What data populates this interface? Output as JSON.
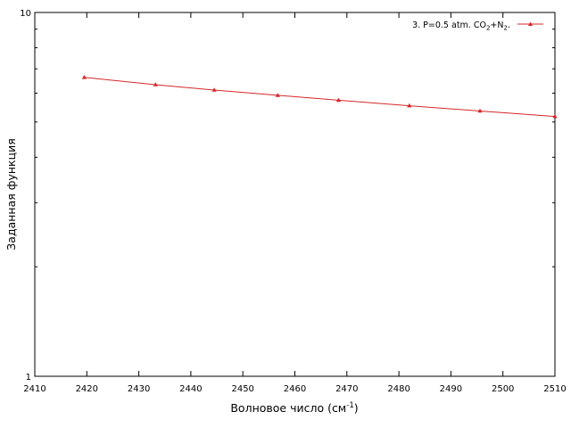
{
  "chart_data": {
    "type": "line",
    "title": "",
    "xlabel": "Волновое число (см",
    "xlabel_superscript": "-1",
    "xlabel_suffix": ")",
    "ylabel": "Заданная функция",
    "xlim": [
      2410,
      2510
    ],
    "ylim": [
      1,
      10
    ],
    "y_scale": "log",
    "grid": false,
    "legend_position": "top-right",
    "x_ticks": [
      "2410",
      "2420",
      "2430",
      "2440",
      "2450",
      "2460",
      "2470",
      "2480",
      "2490",
      "2500",
      "2510"
    ],
    "y_ticks": [
      "1",
      "10"
    ],
    "series": [
      {
        "name": "3. P=0.5 atm. CO",
        "name_sub1": "2",
        "name_mid": "+N",
        "name_sub2": "2",
        "name_end": ".",
        "color": "#d62728",
        "marker": "triangle",
        "x": [
          2419.5,
          2433.2,
          2444.5,
          2456.7,
          2468.4,
          2482.0,
          2495.6,
          2510.0
        ],
        "y": [
          6.63,
          6.33,
          6.12,
          5.92,
          5.74,
          5.54,
          5.36,
          5.18
        ]
      }
    ]
  }
}
